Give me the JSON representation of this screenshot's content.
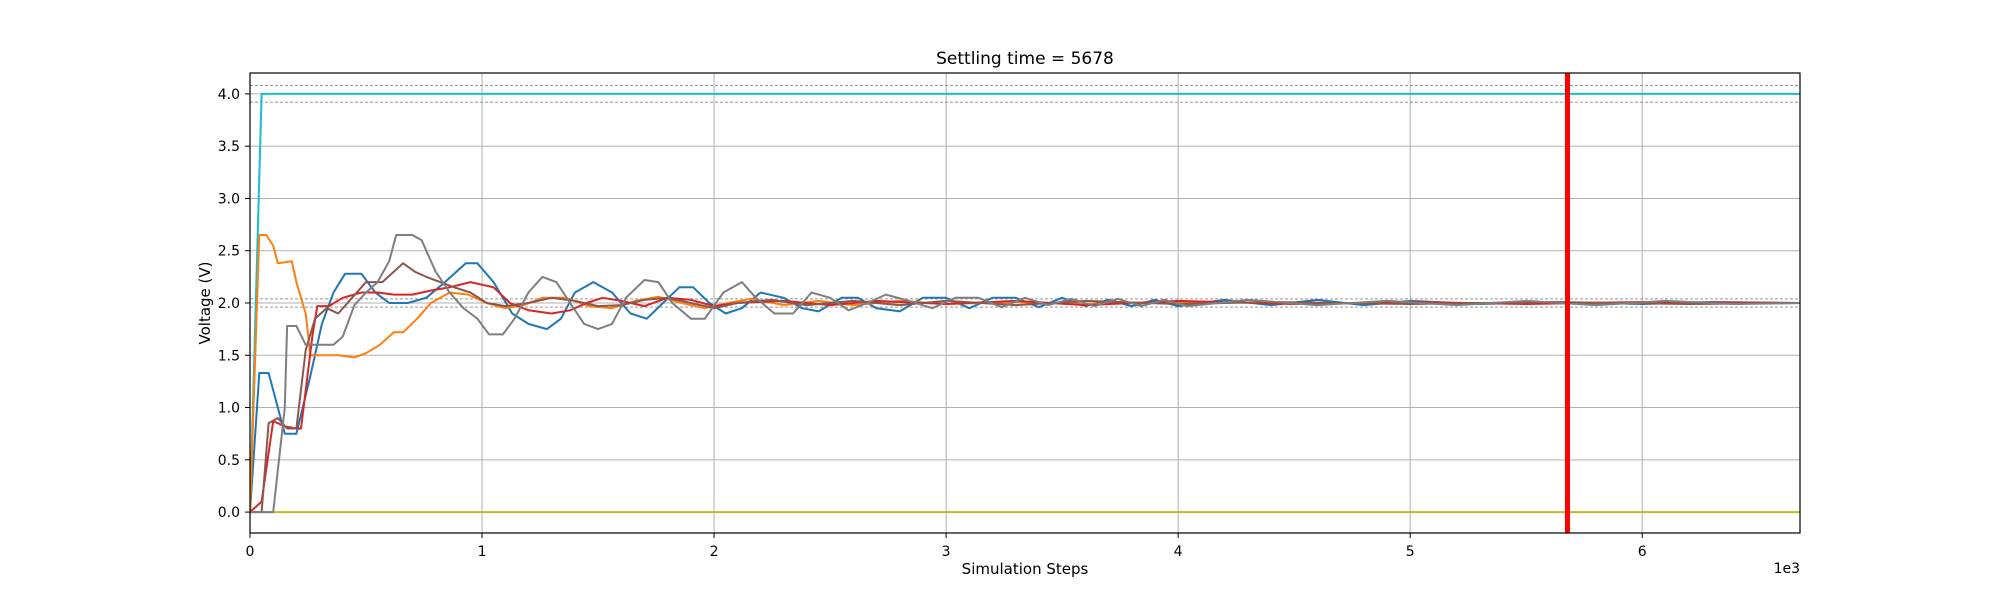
{
  "chart_data": {
    "type": "line",
    "title": "Settling time = 5678",
    "xlabel": "Simulation Steps",
    "ylabel": "Voltage (V)",
    "x_offset_label": "1e3",
    "xlim": [
      0,
      6.68
    ],
    "ylim": [
      -0.2,
      4.2
    ],
    "x_ticks": [
      0,
      1,
      2,
      3,
      4,
      5,
      6
    ],
    "x_tick_labels": [
      "0",
      "1",
      "2",
      "3",
      "4",
      "5",
      "6"
    ],
    "y_ticks": [
      0.0,
      0.5,
      1.0,
      1.5,
      2.0,
      2.5,
      3.0,
      3.5,
      4.0
    ],
    "y_tick_labels": [
      "0.0",
      "0.5",
      "1.0",
      "1.5",
      "2.0",
      "2.5",
      "3.0",
      "3.5",
      "4.0"
    ],
    "grid": true,
    "legend": "none",
    "settling_marker": {
      "x": 5.678,
      "color": "#ff0000"
    },
    "tolerance_bands": [
      {
        "center": 4.0,
        "lower": 3.92,
        "upper": 4.08,
        "color": "#999999"
      },
      {
        "center": 2.0,
        "lower": 1.96,
        "upper": 2.04,
        "color": "#999999"
      }
    ],
    "series": [
      {
        "color": "#17becf",
        "points": [
          [
            0,
            0
          ],
          [
            0.05,
            4.0
          ],
          [
            6.68,
            4.0
          ]
        ]
      },
      {
        "color": "#bcbd22",
        "points": [
          [
            0,
            0
          ],
          [
            6.68,
            0
          ]
        ]
      },
      {
        "color": "#1f77b4",
        "points": [
          [
            0,
            0
          ],
          [
            0.04,
            1.33
          ],
          [
            0.08,
            1.33
          ],
          [
            0.12,
            1.0
          ],
          [
            0.15,
            0.75
          ],
          [
            0.2,
            0.75
          ],
          [
            0.26,
            1.3
          ],
          [
            0.31,
            1.8
          ],
          [
            0.36,
            2.1
          ],
          [
            0.41,
            2.28
          ],
          [
            0.48,
            2.28
          ],
          [
            0.54,
            2.1
          ],
          [
            0.6,
            2.0
          ],
          [
            0.68,
            2.0
          ],
          [
            0.76,
            2.05
          ],
          [
            0.84,
            2.2
          ],
          [
            0.93,
            2.38
          ],
          [
            0.98,
            2.38
          ],
          [
            1.05,
            2.2
          ],
          [
            1.13,
            1.9
          ],
          [
            1.2,
            1.8
          ],
          [
            1.28,
            1.75
          ],
          [
            1.34,
            1.85
          ],
          [
            1.4,
            2.1
          ],
          [
            1.48,
            2.2
          ],
          [
            1.56,
            2.1
          ],
          [
            1.64,
            1.9
          ],
          [
            1.71,
            1.85
          ],
          [
            1.78,
            2.0
          ],
          [
            1.85,
            2.15
          ],
          [
            1.91,
            2.15
          ],
          [
            1.98,
            2.0
          ],
          [
            2.05,
            1.9
          ],
          [
            2.12,
            1.95
          ],
          [
            2.2,
            2.1
          ],
          [
            2.3,
            2.05
          ],
          [
            2.38,
            1.95
          ],
          [
            2.45,
            1.92
          ],
          [
            2.55,
            2.05
          ],
          [
            2.62,
            2.05
          ],
          [
            2.7,
            1.95
          ],
          [
            2.8,
            1.92
          ],
          [
            2.9,
            2.05
          ],
          [
            3.0,
            2.05
          ],
          [
            3.1,
            1.95
          ],
          [
            3.2,
            2.05
          ],
          [
            3.3,
            2.05
          ],
          [
            3.4,
            1.96
          ],
          [
            3.5,
            2.05
          ],
          [
            3.6,
            1.97
          ],
          [
            3.7,
            2.03
          ],
          [
            3.8,
            1.97
          ],
          [
            3.9,
            2.03
          ],
          [
            4.0,
            1.97
          ],
          [
            4.2,
            2.03
          ],
          [
            4.4,
            1.98
          ],
          [
            4.6,
            2.03
          ],
          [
            4.8,
            1.98
          ],
          [
            5.0,
            2.02
          ],
          [
            5.3,
            1.99
          ],
          [
            5.6,
            2.01
          ],
          [
            6.0,
            1.99
          ],
          [
            6.3,
            2.01
          ],
          [
            6.68,
            2.0
          ]
        ]
      },
      {
        "color": "#ff7f0e",
        "points": [
          [
            0,
            0
          ],
          [
            0.04,
            2.65
          ],
          [
            0.07,
            2.65
          ],
          [
            0.1,
            2.55
          ],
          [
            0.12,
            2.38
          ],
          [
            0.18,
            2.4
          ],
          [
            0.2,
            2.2
          ],
          [
            0.24,
            1.9
          ],
          [
            0.26,
            1.5
          ],
          [
            0.38,
            1.5
          ],
          [
            0.45,
            1.48
          ],
          [
            0.5,
            1.52
          ],
          [
            0.56,
            1.6
          ],
          [
            0.62,
            1.72
          ],
          [
            0.66,
            1.72
          ],
          [
            0.72,
            1.85
          ],
          [
            0.78,
            2.0
          ],
          [
            0.86,
            2.1
          ],
          [
            0.94,
            2.08
          ],
          [
            1.02,
            2.0
          ],
          [
            1.1,
            1.95
          ],
          [
            1.18,
            1.98
          ],
          [
            1.26,
            2.05
          ],
          [
            1.36,
            2.05
          ],
          [
            1.46,
            1.97
          ],
          [
            1.56,
            1.95
          ],
          [
            1.66,
            2.02
          ],
          [
            1.76,
            2.06
          ],
          [
            1.86,
            2.0
          ],
          [
            1.96,
            1.95
          ],
          [
            2.06,
            2.0
          ],
          [
            2.16,
            2.04
          ],
          [
            2.3,
            1.98
          ],
          [
            2.45,
            2.02
          ],
          [
            2.6,
            1.98
          ],
          [
            2.8,
            2.02
          ],
          [
            3.0,
            1.99
          ],
          [
            3.3,
            2.01
          ],
          [
            3.6,
            1.99
          ],
          [
            4.0,
            2.01
          ],
          [
            4.5,
            2.0
          ],
          [
            5.0,
            2.0
          ],
          [
            6.68,
            2.0
          ]
        ]
      },
      {
        "color": "#d62728",
        "points": [
          [
            0,
            0
          ],
          [
            0.05,
            0.1
          ],
          [
            0.1,
            0.87
          ],
          [
            0.15,
            0.82
          ],
          [
            0.2,
            0.8
          ],
          [
            0.22,
            0.8
          ],
          [
            0.27,
            1.7
          ],
          [
            0.29,
            1.97
          ],
          [
            0.34,
            1.97
          ],
          [
            0.4,
            2.05
          ],
          [
            0.48,
            2.1
          ],
          [
            0.55,
            2.1
          ],
          [
            0.62,
            2.08
          ],
          [
            0.7,
            2.08
          ],
          [
            0.78,
            2.12
          ],
          [
            0.86,
            2.15
          ],
          [
            0.95,
            2.2
          ],
          [
            1.05,
            2.15
          ],
          [
            1.12,
            2.0
          ],
          [
            1.2,
            1.93
          ],
          [
            1.3,
            1.9
          ],
          [
            1.38,
            1.93
          ],
          [
            1.45,
            2.0
          ],
          [
            1.52,
            2.05
          ],
          [
            1.6,
            2.02
          ],
          [
            1.7,
            1.97
          ],
          [
            1.8,
            2.05
          ],
          [
            1.9,
            2.03
          ],
          [
            2.0,
            1.97
          ],
          [
            2.1,
            2.0
          ],
          [
            2.3,
            2.02
          ],
          [
            2.5,
            1.98
          ],
          [
            2.7,
            2.02
          ],
          [
            3.0,
            1.99
          ],
          [
            3.3,
            2.02
          ],
          [
            3.6,
            1.98
          ],
          [
            4.0,
            2.02
          ],
          [
            4.5,
            1.99
          ],
          [
            5.0,
            2.01
          ],
          [
            5.5,
            1.99
          ],
          [
            6.0,
            2.01
          ],
          [
            6.68,
            2.0
          ]
        ]
      },
      {
        "color": "#8c564b",
        "points": [
          [
            0,
            0
          ],
          [
            0.05,
            0.0
          ],
          [
            0.08,
            0.85
          ],
          [
            0.12,
            0.9
          ],
          [
            0.16,
            0.8
          ],
          [
            0.2,
            0.8
          ],
          [
            0.24,
            1.55
          ],
          [
            0.28,
            1.85
          ],
          [
            0.33,
            1.95
          ],
          [
            0.38,
            1.9
          ],
          [
            0.44,
            2.05
          ],
          [
            0.5,
            2.2
          ],
          [
            0.57,
            2.2
          ],
          [
            0.62,
            2.3
          ],
          [
            0.66,
            2.38
          ],
          [
            0.71,
            2.3
          ],
          [
            0.76,
            2.25
          ],
          [
            0.82,
            2.2
          ],
          [
            0.88,
            2.15
          ],
          [
            0.95,
            2.1
          ],
          [
            1.02,
            2.0
          ],
          [
            1.1,
            1.97
          ],
          [
            1.2,
            2.0
          ],
          [
            1.3,
            2.05
          ],
          [
            1.4,
            2.02
          ],
          [
            1.5,
            1.97
          ],
          [
            1.6,
            1.98
          ],
          [
            1.7,
            2.03
          ],
          [
            1.8,
            2.05
          ],
          [
            1.9,
            2.0
          ],
          [
            2.0,
            1.95
          ],
          [
            2.1,
            2.0
          ],
          [
            2.25,
            2.03
          ],
          [
            2.4,
            1.98
          ],
          [
            2.6,
            2.02
          ],
          [
            2.8,
            1.98
          ],
          [
            3.0,
            2.02
          ],
          [
            3.3,
            1.98
          ],
          [
            3.6,
            2.02
          ],
          [
            4.0,
            1.99
          ],
          [
            4.4,
            2.01
          ],
          [
            5.0,
            1.99
          ],
          [
            5.6,
            2.01
          ],
          [
            6.2,
            1.99
          ],
          [
            6.68,
            2.0
          ]
        ]
      },
      {
        "color": "#7f7f7f",
        "points": [
          [
            0,
            0
          ],
          [
            0.1,
            0.0
          ],
          [
            0.15,
            1.0
          ],
          [
            0.16,
            1.78
          ],
          [
            0.2,
            1.78
          ],
          [
            0.24,
            1.6
          ],
          [
            0.3,
            1.6
          ],
          [
            0.36,
            1.6
          ],
          [
            0.4,
            1.68
          ],
          [
            0.45,
            1.98
          ],
          [
            0.5,
            2.1
          ],
          [
            0.55,
            2.2
          ],
          [
            0.6,
            2.4
          ],
          [
            0.63,
            2.65
          ],
          [
            0.7,
            2.65
          ],
          [
            0.74,
            2.6
          ],
          [
            0.8,
            2.3
          ],
          [
            0.86,
            2.1
          ],
          [
            0.92,
            1.95
          ],
          [
            0.98,
            1.85
          ],
          [
            1.03,
            1.7
          ],
          [
            1.09,
            1.7
          ],
          [
            1.14,
            1.85
          ],
          [
            1.2,
            2.1
          ],
          [
            1.26,
            2.25
          ],
          [
            1.32,
            2.2
          ],
          [
            1.38,
            2.0
          ],
          [
            1.44,
            1.8
          ],
          [
            1.5,
            1.75
          ],
          [
            1.56,
            1.8
          ],
          [
            1.62,
            2.05
          ],
          [
            1.7,
            2.22
          ],
          [
            1.76,
            2.2
          ],
          [
            1.82,
            2.0
          ],
          [
            1.9,
            1.85
          ],
          [
            1.96,
            1.85
          ],
          [
            2.04,
            2.1
          ],
          [
            2.12,
            2.2
          ],
          [
            2.18,
            2.05
          ],
          [
            2.26,
            1.9
          ],
          [
            2.34,
            1.9
          ],
          [
            2.42,
            2.1
          ],
          [
            2.5,
            2.05
          ],
          [
            2.58,
            1.93
          ],
          [
            2.66,
            2.0
          ],
          [
            2.74,
            2.08
          ],
          [
            2.84,
            2.02
          ],
          [
            2.94,
            1.95
          ],
          [
            3.04,
            2.05
          ],
          [
            3.14,
            2.05
          ],
          [
            3.24,
            1.96
          ],
          [
            3.34,
            2.05
          ],
          [
            3.44,
            1.98
          ],
          [
            3.54,
            2.04
          ],
          [
            3.64,
            1.97
          ],
          [
            3.74,
            2.04
          ],
          [
            3.84,
            1.97
          ],
          [
            3.94,
            2.03
          ],
          [
            4.04,
            1.97
          ],
          [
            4.3,
            2.03
          ],
          [
            4.6,
            1.98
          ],
          [
            4.9,
            2.02
          ],
          [
            5.2,
            1.98
          ],
          [
            5.5,
            2.02
          ],
          [
            5.8,
            1.98
          ],
          [
            6.1,
            2.02
          ],
          [
            6.4,
            1.99
          ],
          [
            6.68,
            2.0
          ]
        ]
      }
    ]
  }
}
